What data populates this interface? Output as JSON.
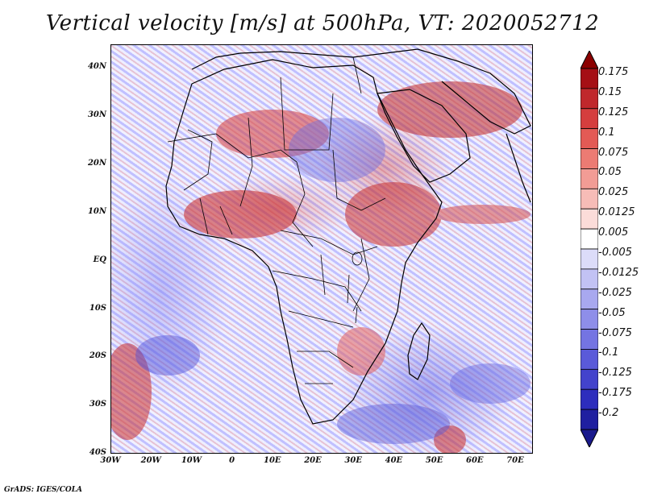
{
  "title": "Vertical velocity [m/s] at 500hPa, VT: 2020052712",
  "footer": "GrADS: IGES/COLA",
  "map": {
    "region": "Africa",
    "lat_ticks": [
      "40N",
      "30N",
      "20N",
      "10N",
      "EQ",
      "10S",
      "20S",
      "30S",
      "40S"
    ],
    "lon_ticks": [
      "30W",
      "20W",
      "10W",
      "0",
      "10E",
      "20E",
      "30E",
      "40E",
      "50E",
      "60E",
      "70E"
    ]
  },
  "legend": {
    "labels": [
      "0.175",
      "0.15",
      "0.125",
      "0.1",
      "0.075",
      "0.05",
      "0.025",
      "0.0125",
      "0.005",
      "-0.005",
      "-0.0125",
      "-0.025",
      "-0.05",
      "-0.075",
      "-0.1",
      "-0.125",
      "-0.175",
      "-0.2"
    ],
    "colors": [
      "#a50f15",
      "#c0282c",
      "#d53e3e",
      "#e35a55",
      "#ec7b73",
      "#f29c95",
      "#f7bcb7",
      "#fbdcd9",
      "#ffffff",
      "#dcdcf9",
      "#c2c2f4",
      "#a8a8ef",
      "#8e8ee9",
      "#7474e2",
      "#5a5ad9",
      "#4343cc",
      "#2d2dbd",
      "#1f1fa0"
    ],
    "top_arrow_color": "#8b0000",
    "bottom_arrow_color": "#1a1a8c"
  }
}
